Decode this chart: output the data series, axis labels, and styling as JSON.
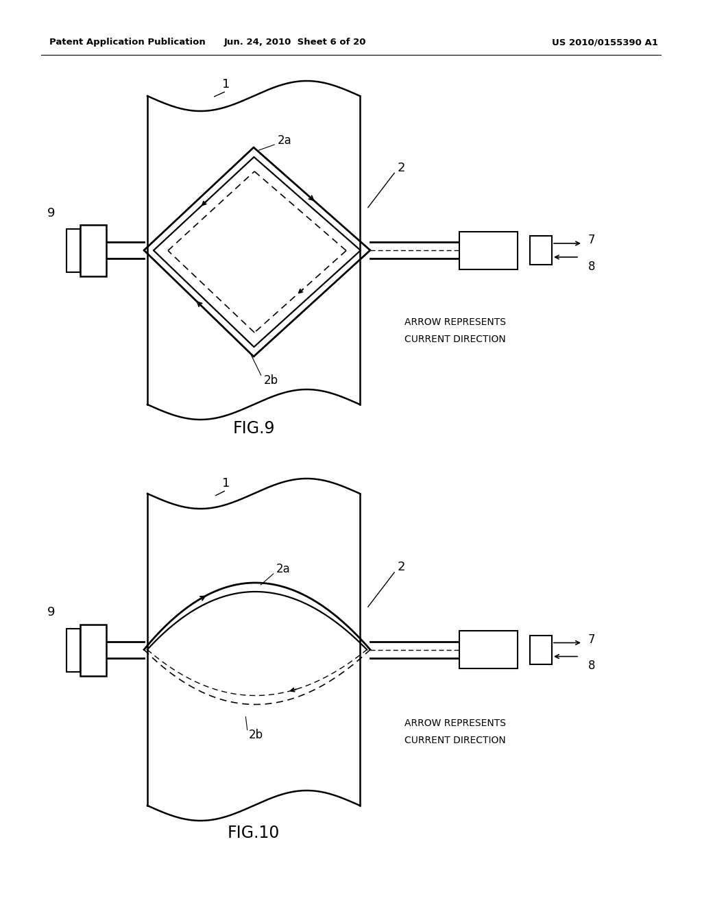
{
  "bg_color": "#ffffff",
  "header_left": "Patent Application Publication",
  "header_mid": "Jun. 24, 2010  Sheet 6 of 20",
  "header_right": "US 2010/0155390 A1",
  "fig9_label": "FIG.9",
  "fig10_label": "FIG.10",
  "arrow_text_line1": "ARROW REPRESENTS",
  "arrow_text_line2": "CURRENT DIRECTION"
}
